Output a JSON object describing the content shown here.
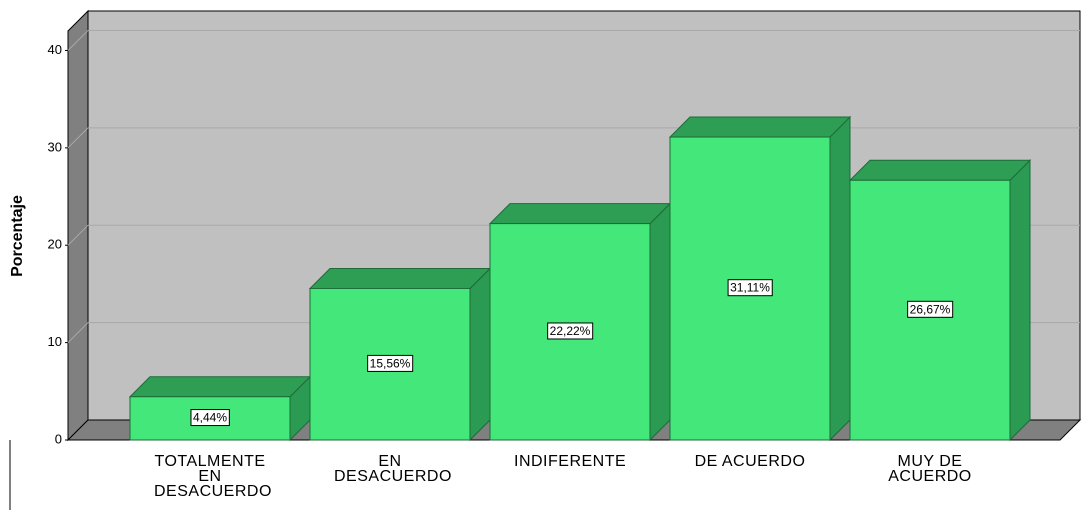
{
  "chart_data": {
    "type": "bar3d",
    "y_label": "Porcentaje",
    "categories": [
      "TOTALMENTE EN DESACUERDO",
      "EN DESACUERDO",
      "INDIFERENTE",
      "DE ACUERDO",
      "MUY DE ACUERDO"
    ],
    "values": [
      4.44,
      15.56,
      22.22,
      31.11,
      26.67
    ],
    "value_labels": [
      "4,44%",
      "15,56%",
      "22,22%",
      "31,11%",
      "26,67%"
    ],
    "color": "#44e87a",
    "ylim": [
      0,
      42
    ],
    "yticks": [
      0,
      10,
      20,
      30,
      40
    ],
    "grid": true
  }
}
